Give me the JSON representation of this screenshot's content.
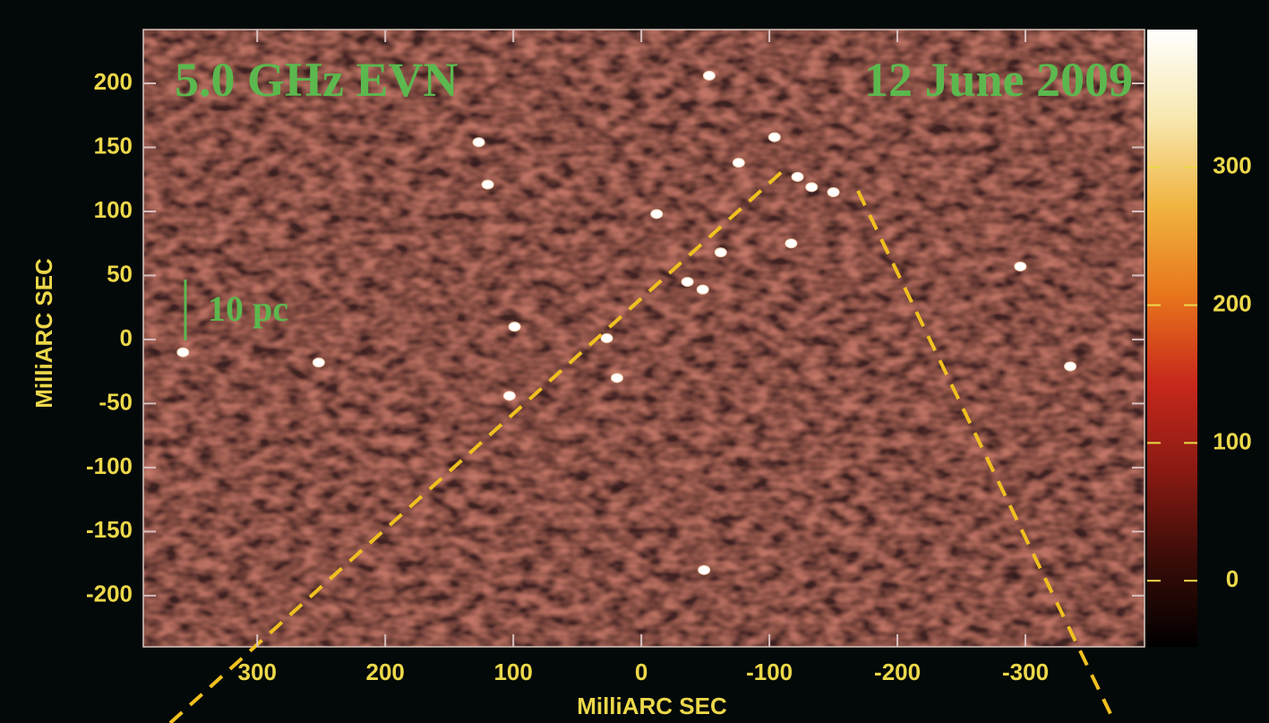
{
  "chart_data": {
    "type": "scatter",
    "title": "5.0 GHz EVN",
    "date_label": "12 June 2009",
    "scale_label": "10 pc",
    "xlabel": "MilliARC SEC",
    "ylabel": "MilliARC SEC",
    "x": [
      -53,
      127,
      120,
      -104,
      -76,
      -122,
      -133,
      -150,
      -12,
      -117,
      -62,
      -36,
      -48,
      -296,
      99,
      27,
      358,
      252,
      19,
      103,
      -335,
      -49
    ],
    "values": [
      206,
      154,
      121,
      158,
      138,
      127,
      119,
      115,
      98,
      75,
      68,
      45,
      39,
      57,
      10,
      1,
      -10,
      -18,
      -30,
      -44,
      -21,
      -180
    ],
    "color": "#ffffff",
    "xlim": [
      389,
      -393
    ],
    "ylim": [
      -240,
      242
    ],
    "xticks": [
      300,
      200,
      100,
      0,
      -100,
      -200,
      -300
    ],
    "yticks": [
      200,
      150,
      100,
      50,
      0,
      -50,
      -100,
      -150,
      -200
    ],
    "clim": [
      -48,
      400
    ],
    "cticks": [
      0,
      100,
      200,
      300
    ],
    "colormap": [
      "#000000",
      "#3a0c08",
      "#8a1a12",
      "#c8281c",
      "#e8761c",
      "#f0b440",
      "#f8e8b0",
      "#ffffff"
    ]
  }
}
